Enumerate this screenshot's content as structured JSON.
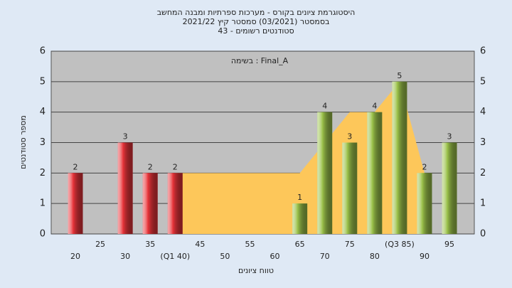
{
  "chart_data": {
    "type": "bar",
    "title": "היסטוגרמת ציונים בקורס - מערכות ספרתיות ומבנה המחשב",
    "subtitle": "בסמסטר (03/2021) סמסטר קיץ 2021/22",
    "subtitle2": "סטודנטים רשומים - 43",
    "annotation": "בשימה : Final_A",
    "x_label": "טווח ציונים",
    "y_label": "מספר סטודנטים",
    "categories": [
      "20",
      "25",
      "30",
      "35",
      "(Q1 40)",
      "45",
      "50",
      "55",
      "60",
      "65",
      "70",
      "75",
      "80",
      "(Q3 85)",
      "90",
      "95"
    ],
    "values": [
      2,
      0,
      3,
      2,
      2,
      0,
      0,
      0,
      0,
      1,
      4,
      3,
      4,
      5,
      2,
      3
    ],
    "colors": [
      "#e8343a",
      "#e8343a",
      "#e8343a",
      "#e8343a",
      "#e8343a",
      "#e8343a",
      "#e8343a",
      "#e8343a",
      "#e8343a",
      "#9bc24a",
      "#9bc24a",
      "#9bc24a",
      "#9bc24a",
      "#9bc24a",
      "#9bc24a",
      "#9bc24a"
    ],
    "area": {
      "color": "#fdc75a",
      "values": [
        null,
        null,
        null,
        null,
        2,
        2,
        2,
        2,
        2,
        2,
        3,
        4,
        4,
        5,
        2,
        null
      ]
    },
    "ylim": [
      0,
      6
    ],
    "yticks": [
      0,
      1,
      2,
      3,
      4,
      5,
      6
    ],
    "grid": true
  }
}
